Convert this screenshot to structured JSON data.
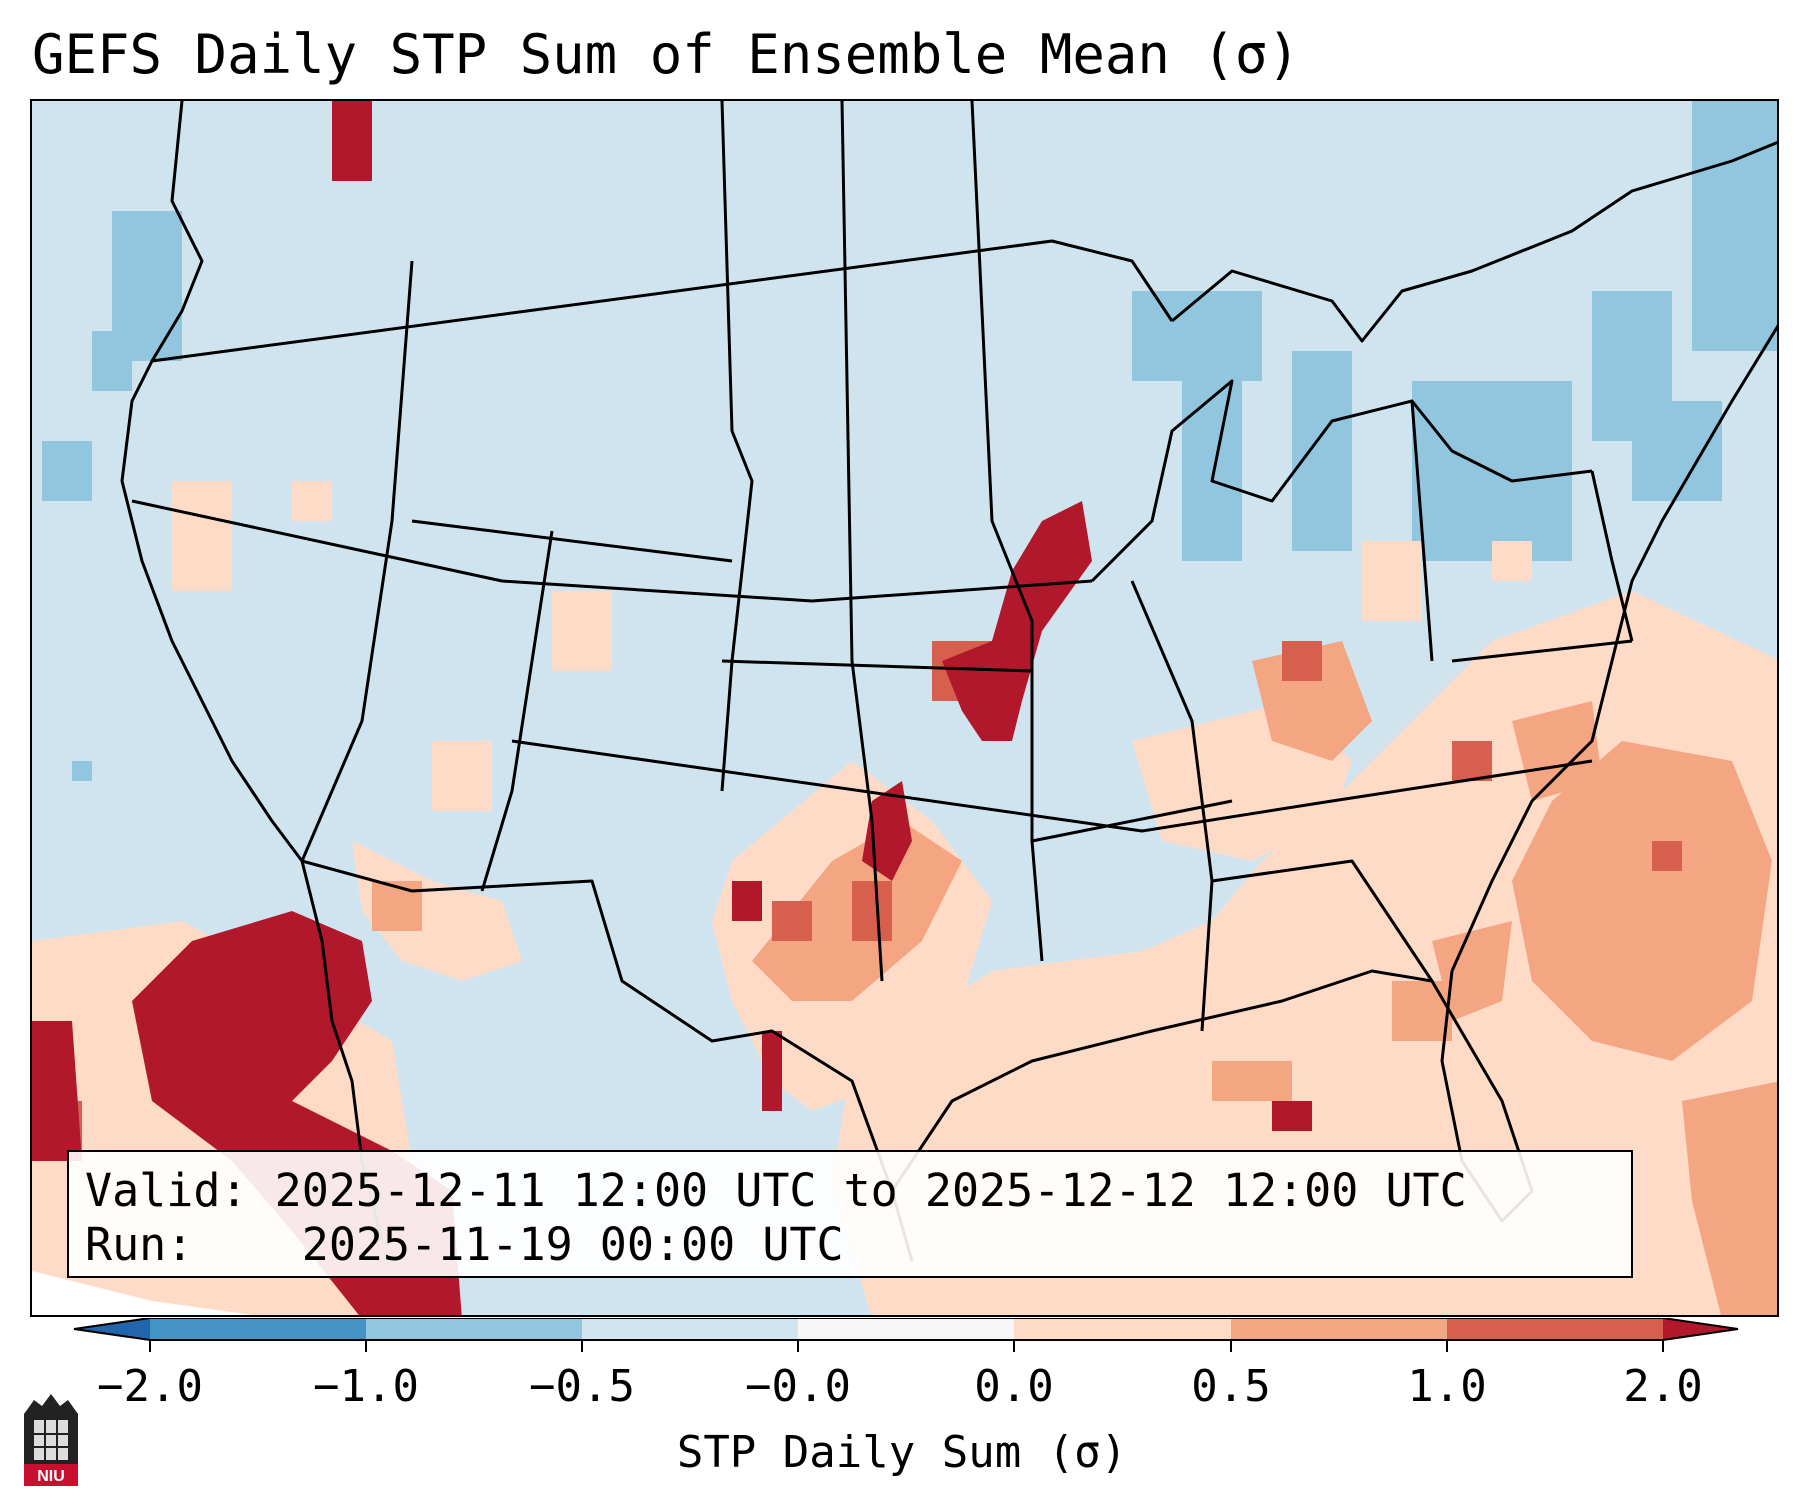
{
  "title": "GEFS Daily STP Sum of Ensemble Mean (σ)",
  "info": {
    "valid_label": "Valid:",
    "valid_value": "2025-12-11 12:00 UTC to 2025-12-12 12:00 UTC",
    "run_label": "Run:",
    "run_value": "2025-11-19 00:00 UTC"
  },
  "colorbar": {
    "label": "STP Daily Sum (σ)",
    "ticks": [
      "−2.0",
      "−1.0",
      "−0.5",
      "−0.0",
      "0.0",
      "0.5",
      "1.0",
      "2.0"
    ],
    "colors": {
      "under": "#2166ac",
      "bin1": "#4393c3",
      "bin2": "#92c5de",
      "bin3": "#d1e5f0",
      "bin4": "#f7f7f7",
      "bin5": "#fddbc7",
      "bin6": "#f4a582",
      "bin7": "#d6604d",
      "over": "#b2182b"
    }
  },
  "logo": {
    "text": "NIU"
  },
  "colors": {
    "field_background": "#d0e4f0",
    "negative_cells": "#92c5de",
    "light_positive": "#fddbc7",
    "mid_positive": "#f4a582",
    "strong_positive": "#d6604d",
    "extreme_positive": "#b2182b"
  }
}
